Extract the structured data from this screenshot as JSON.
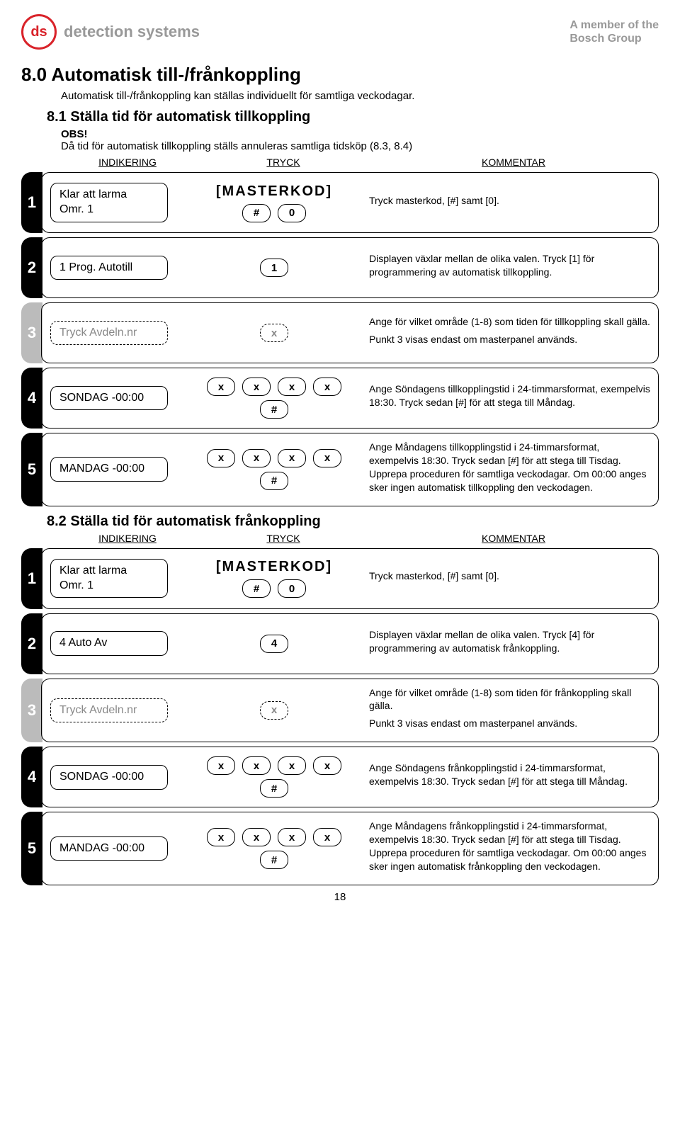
{
  "header": {
    "logo_initials": "ds",
    "logo_text": "detection systems",
    "member_line1": "A member of the",
    "member_line2": "Bosch Group"
  },
  "h1": "8.0 Automatisk till-/frånkoppling",
  "intro": "Automatisk till-/frånkoppling kan ställas individuellt för samtliga veckodagar.",
  "s81": {
    "title": "8.1 Ställa tid för automatisk tillkoppling",
    "obs_label": "OBS!",
    "obs_text": "Då tid för automatisk tillkoppling ställs annuleras samtliga tidsköp (8.3, 8.4)",
    "col_ind": "INDIKERING",
    "col_tryck": "TRYCK",
    "col_komm": "KOMMENTAR",
    "rows": [
      {
        "num": "1",
        "display_l1": "Klar att larma",
        "display_l2": "Omr. 1",
        "masterkod": "[MASTERKOD]",
        "keys1": [
          "#",
          "0"
        ],
        "comment": "Tryck masterkod, [#] samt [0]."
      },
      {
        "num": "2",
        "display_l1": "1 Prog. Autotill",
        "keys1": [
          "1"
        ],
        "comment": "Displayen växlar mellan de olika valen. Tryck [1] för programmering av automatisk tillkoppling."
      },
      {
        "num": "3",
        "display_l1": "Tryck Avdeln.nr",
        "keys1": [
          "x"
        ],
        "comment1": "Ange för vilket område (1-8) som tiden för tillkoppling skall gälla.",
        "comment2": "Punkt 3 visas endast om masterpanel används."
      },
      {
        "num": "4",
        "display_l1": "SONDAG    -00:00",
        "keys1": [
          "x",
          "x",
          "x",
          "x"
        ],
        "keys2": [
          "#"
        ],
        "comment": "Ange Söndagens tillkopplingstid i 24-timmarsformat, exempelvis 18:30. Tryck sedan [#] för att stega till Måndag."
      },
      {
        "num": "5",
        "display_l1": "MANDAG   -00:00",
        "keys1": [
          "x",
          "x",
          "x",
          "x"
        ],
        "keys2": [
          "#"
        ],
        "comment": "Ange Måndagens tillkopplingstid i 24-timmarsformat, exempelvis 18:30. Tryck sedan [#] för att stega till Tisdag. Upprepa proceduren för samtliga veckodagar. Om 00:00 anges sker ingen automatisk tillkoppling den veckodagen."
      }
    ]
  },
  "s82": {
    "title": "8.2 Ställa tid för automatisk frånkoppling",
    "col_ind": "INDIKERING",
    "col_tryck": "TRYCK",
    "col_komm": "KOMMENTAR",
    "rows": [
      {
        "num": "1",
        "display_l1": "Klar att larma",
        "display_l2": "Omr. 1",
        "masterkod": "[MASTERKOD]",
        "keys1": [
          "#",
          "0"
        ],
        "comment": "Tryck masterkod, [#] samt [0]."
      },
      {
        "num": "2",
        "display_l1": "4 Auto Av",
        "keys1": [
          "4"
        ],
        "comment": "Displayen växlar mellan de olika valen. Tryck [4] för programmering av automatisk frånkoppling."
      },
      {
        "num": "3",
        "display_l1": "Tryck Avdeln.nr",
        "keys1": [
          "x"
        ],
        "comment1": "Ange för vilket område (1-8) som tiden för frånkoppling skall gälla.",
        "comment2": "Punkt 3 visas endast om masterpanel används."
      },
      {
        "num": "4",
        "display_l1": "SONDAG    -00:00",
        "keys1": [
          "x",
          "x",
          "x",
          "x"
        ],
        "keys2": [
          "#"
        ],
        "comment": "Ange Söndagens frånkopplingstid i 24-timmarsformat, exempelvis 18:30. Tryck sedan [#] för att stega till Måndag."
      },
      {
        "num": "5",
        "display_l1": "MANDAG   -00:00",
        "keys1": [
          "x",
          "x",
          "x",
          "x"
        ],
        "keys2": [
          "#"
        ],
        "comment": "Ange Måndagens frånkopplingstid i 24-timmarsformat, exempelvis 18:30. Tryck sedan [#] för att stega till Tisdag. Upprepa proceduren för samtliga veckodagar. Om 00:00 anges sker ingen automatisk frånkoppling den veckodagen."
      }
    ]
  },
  "page_number": "18"
}
